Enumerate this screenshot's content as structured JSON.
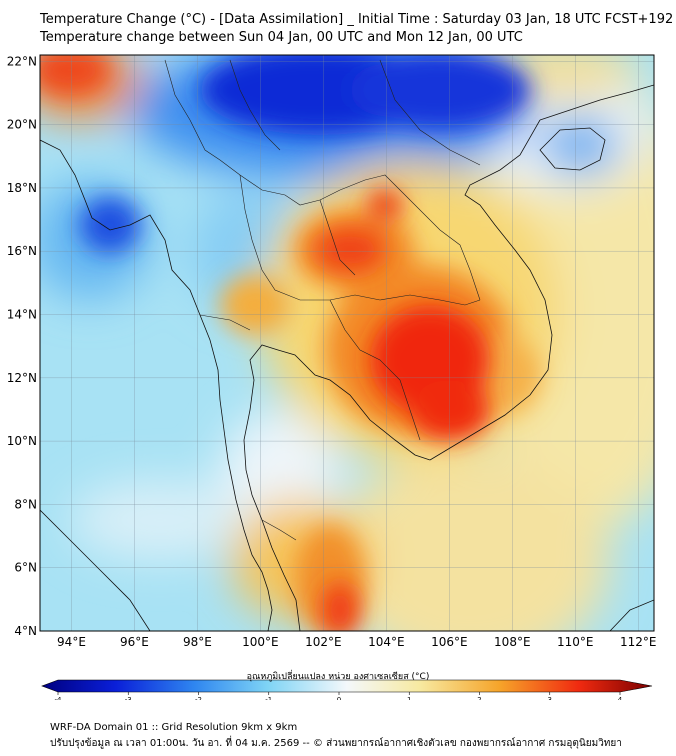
{
  "title_line1": "Temperature Change (°C) - [Data Assimilation] _ Initial Time : Saturday 03 Jan, 18 UTC FCST+192",
  "title_line2": "Temperature change between Sun 04 Jan, 00 UTC and Mon 12 Jan, 00 UTC",
  "map": {
    "lon_range": [
      93,
      112.5
    ],
    "lat_range": [
      4,
      22.2
    ],
    "lon_ticks": [
      "94°E",
      "96°E",
      "98°E",
      "100°E",
      "102°E",
      "104°E",
      "106°E",
      "108°E",
      "110°E",
      "112°E"
    ],
    "lat_ticks": [
      "4°N",
      "6°N",
      "8°N",
      "10°N",
      "12°N",
      "14°N",
      "16°N",
      "18°N",
      "20°N",
      "22°N"
    ]
  },
  "colorbar": {
    "title": "อุณหภูมิเปลี่ยนแปลง หน่วย องศาเซลเซียส (°C)",
    "ticks": [
      "-4",
      "-3",
      "-2",
      "-1",
      "0",
      "1",
      "2",
      "3",
      "4"
    ],
    "range": [
      -4,
      4
    ]
  },
  "footer_line1": "WRF-DA Domain 01 :: Grid Resolution 9km x 9km",
  "footer_line2": "ปรับปรุงข้อมูล ณ เวลา 01:00น. วัน อา. ที่ 04 ม.ค. 2569 -- © ส่วนพยากรณ์อากาศเชิงตัวเลข กองพยากรณ์อากาศ กรมอุตุนิยมวิทยา",
  "colors": {
    "deep_blue": "#0a1fd8",
    "blue": "#2f86f0",
    "cyan": "#7fd4f5",
    "white": "#f4f8fb",
    "yellow": "#f7e9a0",
    "orange": "#f6a42a",
    "red": "#f02a10",
    "dark_red": "#7a0000"
  }
}
